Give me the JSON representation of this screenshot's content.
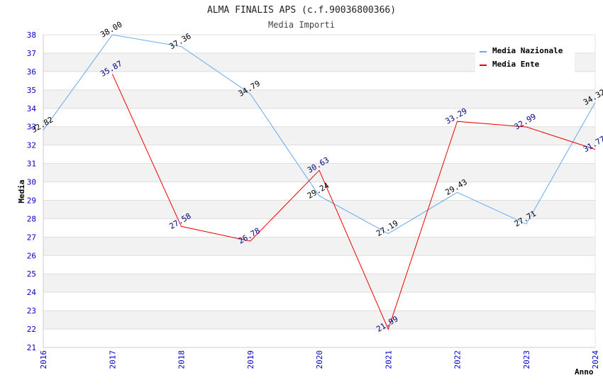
{
  "chart_data": {
    "type": "line",
    "title": "ALMA FINALIS APS (c.f.90036800366)",
    "subtitle": "Media Importi",
    "xlabel": "Anno",
    "ylabel": "Media",
    "ylim": [
      21,
      38
    ],
    "yticks": [
      21,
      22,
      23,
      24,
      25,
      26,
      27,
      28,
      29,
      30,
      31,
      32,
      33,
      34,
      35,
      36,
      37,
      38
    ],
    "categories": [
      "2016",
      "2017",
      "2018",
      "2019",
      "2020",
      "2021",
      "2022",
      "2023",
      "2024"
    ],
    "grid": true,
    "legend_position": "top-right",
    "series": [
      {
        "name": "Media Nazionale",
        "color": "#66aaee",
        "label_color": "#000000",
        "values": [
          32.82,
          38.0,
          37.36,
          34.79,
          29.24,
          27.19,
          29.43,
          27.71,
          34.32
        ],
        "labels": [
          "32.82",
          "38.00",
          "37.36",
          "34.79",
          "29.24",
          "27.19",
          "29.43",
          "27.71",
          "34.32"
        ]
      },
      {
        "name": "Media Ente",
        "color": "#ee0000",
        "label_color": "#000080",
        "values": [
          null,
          35.87,
          27.58,
          26.78,
          30.63,
          21.99,
          33.29,
          32.99,
          31.77
        ],
        "labels": [
          null,
          "35.87",
          "27.58",
          "26.78",
          "30.63",
          "21.99",
          "33.29",
          "32.99",
          "31.77"
        ]
      }
    ]
  }
}
